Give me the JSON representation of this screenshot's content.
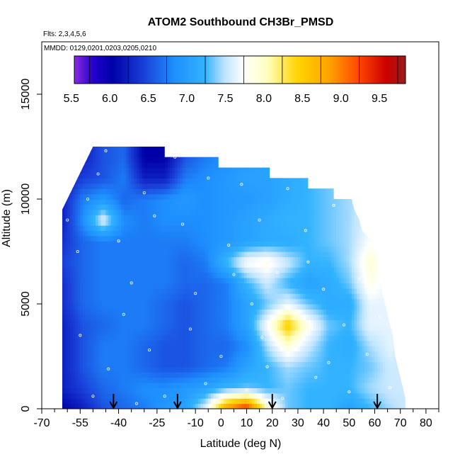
{
  "chart_data": {
    "type": "heatmap",
    "title": "ATOM2 Southbound CH3Br_PMSD",
    "annotations": [
      "Flts: 2,3,4,5,6",
      "MMDD: 0129,0201,0203,0205,0210"
    ],
    "xlabel": "Latitude (deg N)",
    "ylabel": "Altitude (m)",
    "xlim": [
      -70,
      85
    ],
    "ylim": [
      0,
      17500
    ],
    "x_ticks": [
      -70,
      -55,
      -40,
      -25,
      -10,
      0,
      10,
      20,
      30,
      40,
      50,
      60,
      70,
      80
    ],
    "x_minor_ticks": [
      -65,
      -60,
      -50,
      -45,
      -35,
      -30,
      -20,
      -15,
      -5,
      5,
      15,
      25,
      35,
      45,
      55,
      65,
      75,
      85
    ],
    "y_ticks": [
      0,
      5000,
      10000,
      15000
    ],
    "colorbar": {
      "ticks": [
        5.5,
        6.0,
        6.5,
        7.0,
        7.5,
        8.0,
        8.5,
        9.0,
        9.5
      ],
      "range": [
        5.3,
        9.6
      ],
      "bins": [
        5.5,
        6.0,
        6.5,
        7.0,
        7.5,
        8.0,
        8.5,
        9.0,
        9.5
      ],
      "stops": [
        {
          "value": 5.3,
          "color": "#8a2be2"
        },
        {
          "value": 5.55,
          "color": "#2200cc"
        },
        {
          "value": 5.8,
          "color": "#0000a8"
        },
        {
          "value": 6.2,
          "color": "#1a3fd8"
        },
        {
          "value": 6.6,
          "color": "#1e90ff"
        },
        {
          "value": 7.0,
          "color": "#33b3ff"
        },
        {
          "value": 7.25,
          "color": "#bfe4ff"
        },
        {
          "value": 7.5,
          "color": "#ffffff"
        },
        {
          "value": 7.8,
          "color": "#ffffc0"
        },
        {
          "value": 8.2,
          "color": "#ffd400"
        },
        {
          "value": 8.6,
          "color": "#ffa500"
        },
        {
          "value": 9.0,
          "color": "#ff4500"
        },
        {
          "value": 9.35,
          "color": "#cc0000"
        },
        {
          "value": 9.6,
          "color": "#9b1b1b"
        }
      ]
    },
    "domain_outline": [
      [
        -62,
        0
      ],
      [
        -62,
        9500
      ],
      [
        -60,
        10000
      ],
      [
        -58,
        10500
      ],
      [
        -56,
        11000
      ],
      [
        -54,
        11500
      ],
      [
        -50,
        12500
      ],
      [
        -22,
        12500
      ],
      [
        -22,
        12000
      ],
      [
        -1,
        12000
      ],
      [
        -1,
        11500
      ],
      [
        19,
        11500
      ],
      [
        19,
        11000
      ],
      [
        34,
        11000
      ],
      [
        34,
        10500
      ],
      [
        44,
        10500
      ],
      [
        44,
        10000
      ],
      [
        51,
        10000
      ],
      [
        52,
        9500
      ],
      [
        54,
        9000
      ],
      [
        55,
        8500
      ],
      [
        59,
        8000
      ],
      [
        61,
        7500
      ],
      [
        62,
        6500
      ],
      [
        63,
        5500
      ],
      [
        65,
        4500
      ],
      [
        67,
        3500
      ],
      [
        68,
        2500
      ],
      [
        70,
        1500
      ],
      [
        71,
        1000
      ],
      [
        72,
        500
      ],
      [
        72,
        0
      ]
    ],
    "grid_lat": [
      -62,
      -54,
      -46,
      -38,
      -30,
      -22,
      -14,
      -6,
      2,
      10,
      18,
      26,
      34,
      42,
      50,
      58,
      66,
      72
    ],
    "grid_alt": [
      0,
      1000,
      2000,
      3000,
      4000,
      5000,
      6000,
      7000,
      8000,
      9000,
      10000,
      11000,
      12000
    ],
    "grid_values": [
      [
        5.8,
        6.0,
        6.3,
        6.4,
        6.5,
        6.7,
        6.8,
        7.4,
        8.7,
        9.2,
        7.8,
        7.1,
        7.0,
        7.0,
        6.8,
        7.0,
        7.2,
        7.3
      ],
      [
        6.0,
        6.2,
        6.4,
        6.5,
        6.6,
        6.6,
        6.7,
        6.8,
        7.0,
        7.1,
        7.0,
        7.1,
        7.0,
        7.0,
        7.0,
        7.2,
        7.3,
        7.3
      ],
      [
        6.0,
        6.3,
        6.5,
        6.5,
        6.4,
        6.3,
        6.3,
        6.4,
        6.5,
        6.8,
        7.0,
        7.2,
        7.1,
        7.0,
        7.0,
        7.1,
        7.3,
        7.3
      ],
      [
        6.0,
        6.3,
        6.5,
        6.5,
        6.4,
        6.3,
        6.3,
        6.4,
        6.4,
        6.6,
        7.2,
        7.7,
        7.3,
        7.0,
        6.9,
        7.2,
        7.4,
        7.3
      ],
      [
        6.0,
        6.3,
        6.4,
        6.5,
        6.5,
        6.4,
        6.3,
        6.4,
        6.5,
        6.8,
        7.5,
        8.3,
        7.6,
        7.1,
        7.0,
        7.4,
        7.4,
        7.3
      ],
      [
        6.1,
        6.4,
        6.5,
        6.5,
        6.5,
        6.4,
        6.3,
        6.4,
        6.5,
        6.8,
        7.1,
        7.4,
        7.1,
        6.9,
        6.9,
        7.4,
        7.4,
        7.3
      ],
      [
        6.1,
        6.4,
        6.5,
        6.5,
        6.5,
        6.5,
        6.4,
        6.4,
        6.5,
        7.0,
        7.3,
        7.0,
        6.8,
        6.9,
        7.1,
        7.6,
        7.4,
        7.3
      ],
      [
        6.2,
        6.4,
        6.5,
        6.5,
        6.5,
        6.5,
        6.4,
        6.5,
        7.0,
        7.5,
        7.6,
        7.3,
        7.0,
        7.0,
        7.2,
        7.7,
        7.4,
        7.3
      ],
      [
        6.1,
        6.4,
        6.5,
        6.5,
        6.5,
        6.5,
        6.5,
        6.6,
        6.7,
        6.8,
        6.9,
        6.9,
        7.0,
        7.1,
        7.2,
        7.5,
        7.4,
        7.3
      ],
      [
        6.0,
        6.6,
        7.4,
        6.6,
        6.5,
        6.6,
        6.6,
        6.6,
        6.7,
        6.8,
        6.9,
        7.0,
        7.0,
        7.1,
        7.2,
        7.4,
        7.4,
        7.3
      ],
      [
        6.0,
        6.5,
        6.7,
        6.4,
        6.5,
        6.6,
        6.7,
        6.6,
        6.7,
        6.7,
        6.8,
        6.9,
        7.0,
        7.1,
        7.2,
        7.3,
        7.3,
        7.3
      ],
      [
        5.9,
        6.2,
        6.3,
        6.5,
        6.0,
        6.0,
        6.5,
        6.6,
        6.7,
        6.8,
        6.8,
        6.9,
        7.0,
        7.1,
        7.2,
        7.3,
        7.3,
        7.3
      ],
      [
        5.9,
        6.0,
        6.3,
        6.4,
        5.8,
        5.8,
        6.3,
        6.5,
        6.6,
        6.7,
        6.8,
        6.9,
        7.0,
        7.1,
        7.2,
        7.3,
        7.3,
        7.3
      ]
    ],
    "arrows_lat": [
      -42,
      -17,
      20,
      61
    ],
    "sample_points": [
      [
        -60,
        9000
      ],
      [
        -56,
        7500
      ],
      [
        -52,
        10000
      ],
      [
        -48,
        11200
      ],
      [
        -45,
        12300
      ],
      [
        -40,
        8000
      ],
      [
        -35,
        6000
      ],
      [
        -30,
        10300
      ],
      [
        -26,
        9200
      ],
      [
        -20,
        12100
      ],
      [
        -18,
        12000
      ],
      [
        -15,
        8800
      ],
      [
        -10,
        5500
      ],
      [
        -5,
        11000
      ],
      [
        0,
        2500
      ],
      [
        3,
        7800
      ],
      [
        8,
        10700
      ],
      [
        12,
        5000
      ],
      [
        15,
        9000
      ],
      [
        18,
        2000
      ],
      [
        22,
        6500
      ],
      [
        26,
        10500
      ],
      [
        30,
        3200
      ],
      [
        33,
        8500
      ],
      [
        37,
        1500
      ],
      [
        40,
        5700
      ],
      [
        44,
        9700
      ],
      [
        48,
        4000
      ],
      [
        50,
        800
      ],
      [
        54,
        6200
      ],
      [
        57,
        2600
      ],
      [
        62,
        4400
      ],
      [
        66,
        1000
      ],
      [
        -55,
        3500
      ],
      [
        -44,
        1900
      ],
      [
        -38,
        4500
      ],
      [
        -28,
        2800
      ],
      [
        -22,
        600
      ],
      [
        -12,
        3800
      ],
      [
        -6,
        1200
      ],
      [
        5,
        6400
      ],
      [
        10,
        900
      ],
      [
        16,
        3400
      ],
      [
        24,
        500
      ],
      [
        34,
        7000
      ],
      [
        42,
        2200
      ],
      [
        -50,
        600
      ],
      [
        -33,
        250
      ]
    ]
  }
}
